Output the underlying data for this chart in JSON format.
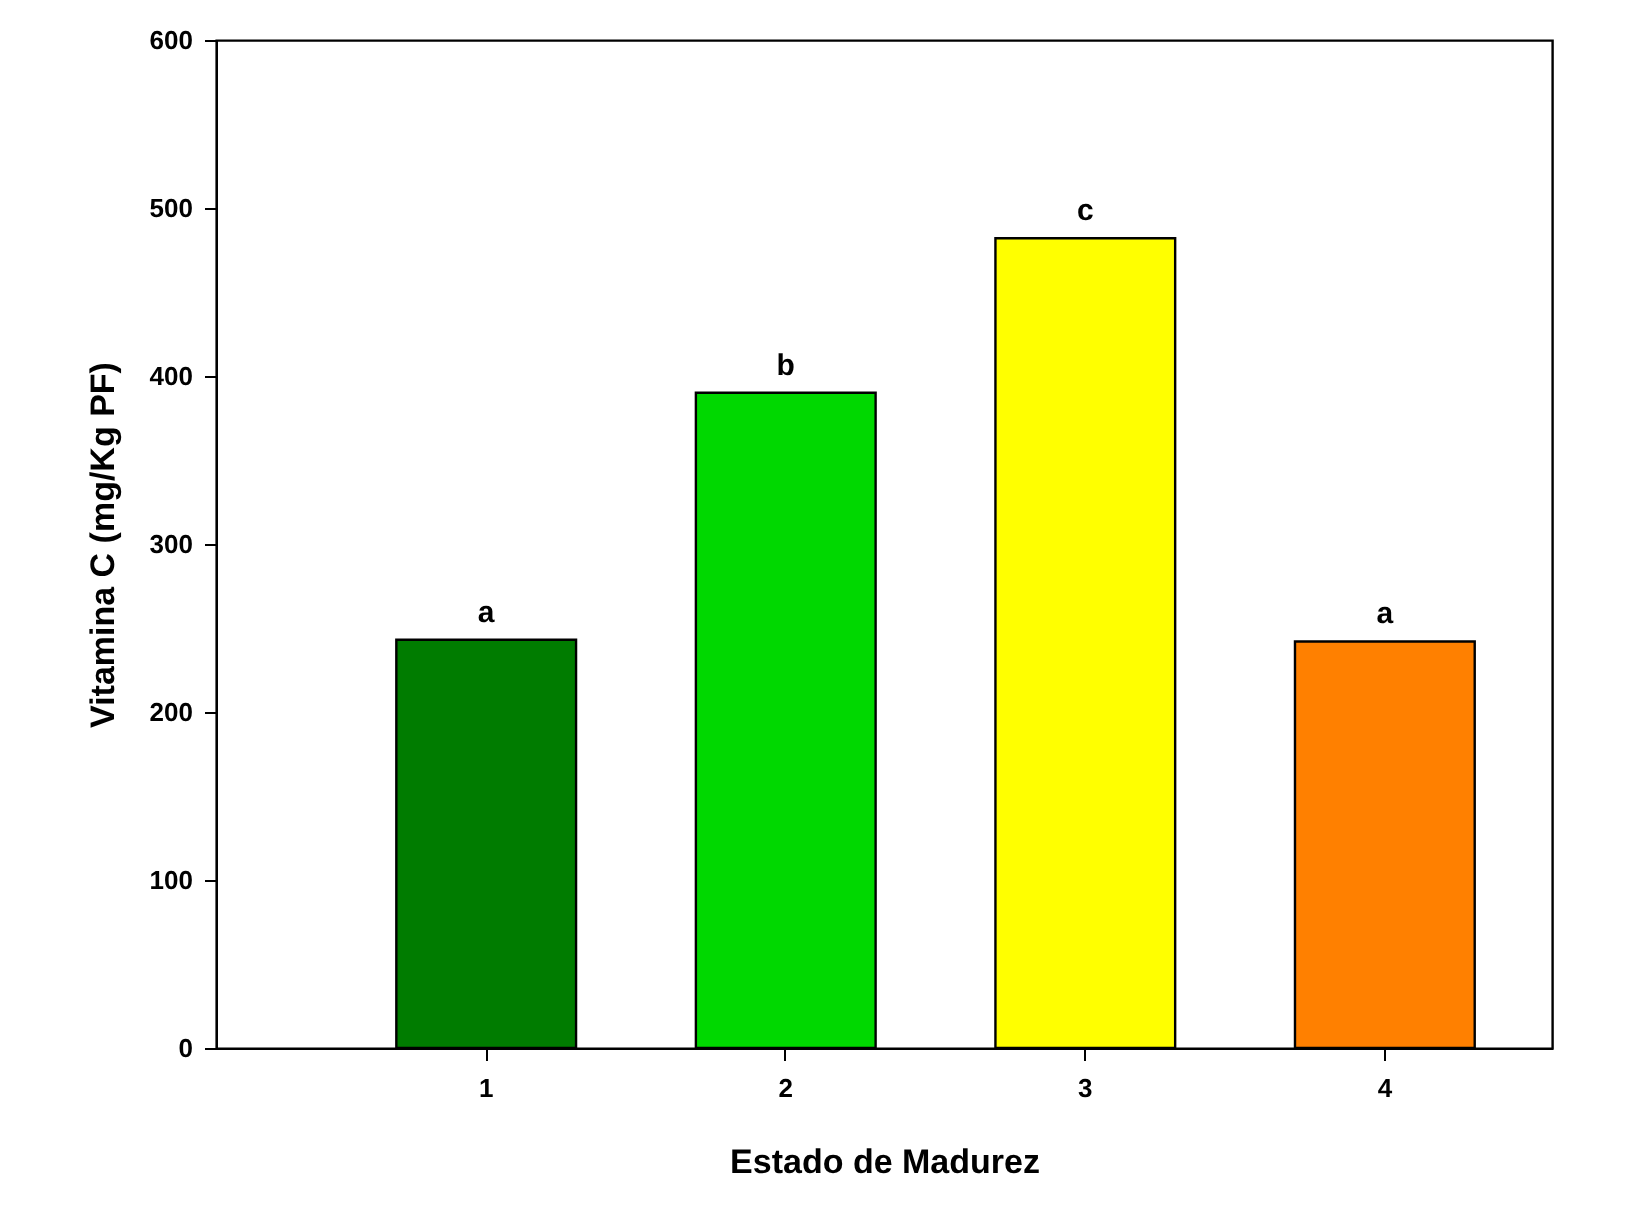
{
  "chart_data": {
    "type": "bar",
    "xlabel": "Estado de Madurez",
    "ylabel": "Vitamina C (mg/Kg PF)",
    "categories": [
      "1",
      "2",
      "3",
      "4"
    ],
    "values": [
      243,
      390,
      482,
      242
    ],
    "colors": [
      "#007c00",
      "#00d800",
      "#ffff00",
      "#ff8000"
    ],
    "ylim": [
      0,
      600
    ],
    "yticks": [
      0,
      100,
      200,
      300,
      400,
      500,
      600
    ],
    "grid": false,
    "annotations": [
      {
        "text": "a",
        "x": "1",
        "y": 243
      },
      {
        "text": "b",
        "x": "2",
        "y": 390
      },
      {
        "text": "c",
        "x": "3",
        "y": 482
      },
      {
        "text": "a",
        "x": "4",
        "y": 242
      }
    ]
  }
}
